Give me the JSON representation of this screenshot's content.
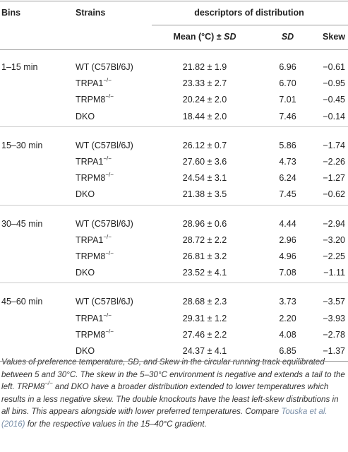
{
  "table": {
    "header": {
      "bins": "Bins",
      "strains": "Strains",
      "descriptors": "descriptors of distribution",
      "mean": "Mean (°C) ±",
      "mean_sd": "SD",
      "sd": "SD",
      "skew": "Skew"
    },
    "groups": [
      {
        "bin": "1–15 min",
        "rows": [
          {
            "strain": "WT (C57Bl/6J)",
            "sup": "",
            "mean": "21.82 ± 1.9",
            "sd": "6.96",
            "skew": "−0.61"
          },
          {
            "strain": "TRPA1",
            "sup": "−/−",
            "mean": "23.33 ± 2.7",
            "sd": "6.70",
            "skew": "−0.95"
          },
          {
            "strain": "TRPM8",
            "sup": "−/−",
            "mean": "20.24 ± 2.0",
            "sd": "7.01",
            "skew": "−0.45"
          },
          {
            "strain": "DKO",
            "sup": "",
            "mean": "18.44 ± 2.0",
            "sd": "7.46",
            "skew": "−0.14"
          }
        ]
      },
      {
        "bin": "15–30 min",
        "rows": [
          {
            "strain": "WT (C57Bl/6J)",
            "sup": "",
            "mean": "26.12 ± 0.7",
            "sd": "5.86",
            "skew": "−1.74"
          },
          {
            "strain": "TRPA1",
            "sup": "−/−",
            "mean": "27.60 ± 3.6",
            "sd": "4.73",
            "skew": "−2.26"
          },
          {
            "strain": "TRPM8",
            "sup": "−/−",
            "mean": "24.54 ± 3.1",
            "sd": "6.24",
            "skew": "−1.27"
          },
          {
            "strain": "DKO",
            "sup": "",
            "mean": "21.38 ± 3.5",
            "sd": "7.45",
            "skew": "−0.62"
          }
        ]
      },
      {
        "bin": "30–45 min",
        "rows": [
          {
            "strain": "WT (C57Bl/6J)",
            "sup": "",
            "mean": "28.96 ± 0.6",
            "sd": "4.44",
            "skew": "−2.94"
          },
          {
            "strain": "TRPA1",
            "sup": "−/−",
            "mean": "28.72 ± 2.2",
            "sd": "2.96",
            "skew": "−3.20"
          },
          {
            "strain": "TRPM8",
            "sup": "−/−",
            "mean": "26.81 ± 3.2",
            "sd": "4.96",
            "skew": "−2.25"
          },
          {
            "strain": "DKO",
            "sup": "",
            "mean": "23.52 ± 4.1",
            "sd": "7.08",
            "skew": "−1.11"
          }
        ]
      },
      {
        "bin": "45–60 min",
        "rows": [
          {
            "strain": "WT (C57Bl/6J)",
            "sup": "",
            "mean": "28.68 ± 2.3",
            "sd": "3.73",
            "skew": "−3.57"
          },
          {
            "strain": "TRPA1",
            "sup": "−/−",
            "mean": "29.31 ± 1.2",
            "sd": "2.20",
            "skew": "−3.93"
          },
          {
            "strain": "TRPM8",
            "sup": "−/−",
            "mean": "27.46 ± 2.2",
            "sd": "4.08",
            "skew": "−2.78"
          },
          {
            "strain": "DKO",
            "sup": "",
            "mean": "24.37 ± 4.1",
            "sd": "6.85",
            "skew": "−1.37"
          }
        ]
      }
    ]
  },
  "caption": {
    "text1": "Values of preference temperature, SD, and Skew in the circular running track equilibrated between 5 and 30°C. The skew in the 5–30°C environment is negative and extends a tail to the left. TRPM8",
    "sup": "−/−",
    "text2": " and DKO have a broader distribution extended to lower temperatures which results in a less negative skew. The double knockouts have the least left-skew distributions in all bins. This appears alongside with lower preferred temperatures. Compare ",
    "link": "Touska et al. (2016)",
    "text3": " for the respective values in the 15–40°C gradient."
  }
}
